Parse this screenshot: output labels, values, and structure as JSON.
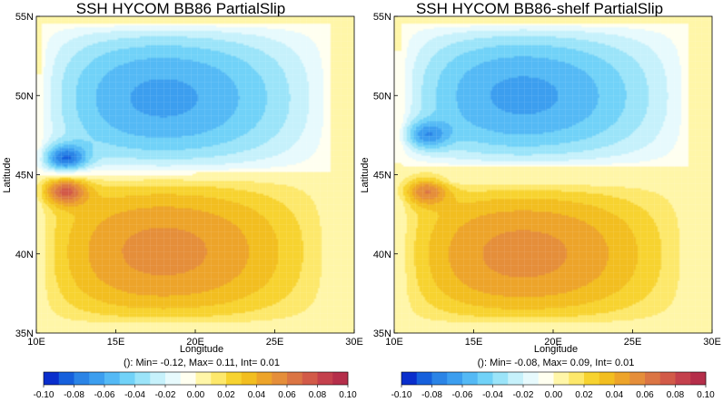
{
  "chart_data": [
    {
      "type": "heatmap",
      "title": "SSH HYCOM BB86 PartialSlip",
      "xlabel": "Longitude",
      "ylabel": "Latitude",
      "xlim": [
        10,
        30
      ],
      "ylim": [
        35,
        55
      ],
      "xticks": [
        {
          "v": 10,
          "label": "10E"
        },
        {
          "v": 15,
          "label": "15E"
        },
        {
          "v": 20,
          "label": "20E"
        },
        {
          "v": 25,
          "label": "25E"
        },
        {
          "v": 30,
          "label": "30E"
        }
      ],
      "yticks": [
        {
          "v": 35,
          "label": "35N"
        },
        {
          "v": 40,
          "label": "40N"
        },
        {
          "v": 45,
          "label": "45N"
        },
        {
          "v": 50,
          "label": "50N"
        },
        {
          "v": 55,
          "label": "55N"
        }
      ],
      "stats": "(): Min= -0.12, Max= 0.11, Int= 0.01",
      "min": -0.12,
      "max": 0.11,
      "interval": 0.01,
      "field": {
        "gyres": [
          {
            "lon": [
              10.3,
              28.5
            ],
            "lat": [
              45.2,
              54.5
            ],
            "amp": -0.07,
            "spread": 0.55
          },
          {
            "lon": [
              10.3,
              28.5
            ],
            "lat": [
              35.5,
              44.8
            ],
            "amp": 0.06,
            "spread": 0.55
          }
        ],
        "jet_dipole": {
          "lon": 11.8,
          "neg_lat": 46.0,
          "pos_lat": 44.0,
          "amp_neg": -0.12,
          "amp_pos": 0.11
        }
      },
      "grid": true
    },
    {
      "type": "heatmap",
      "title": "SSH HYCOM BB86-shelf PartialSlip",
      "xlabel": "Longitude",
      "ylabel": "Latitude",
      "xlim": [
        10,
        30
      ],
      "ylim": [
        35,
        55
      ],
      "xticks": [
        {
          "v": 10,
          "label": "10E"
        },
        {
          "v": 15,
          "label": "15E"
        },
        {
          "v": 20,
          "label": "20E"
        },
        {
          "v": 25,
          "label": "25E"
        },
        {
          "v": 30,
          "label": "30E"
        }
      ],
      "yticks": [
        {
          "v": 35,
          "label": "35N"
        },
        {
          "v": 40,
          "label": "40N"
        },
        {
          "v": 45,
          "label": "45N"
        },
        {
          "v": 50,
          "label": "50N"
        },
        {
          "v": 55,
          "label": "55N"
        }
      ],
      "stats": "(): Min= -0.08, Max= 0.09, Int= 0.01",
      "min": -0.08,
      "max": 0.09,
      "interval": 0.01,
      "field": {
        "gyres": [
          {
            "lon": [
              10.5,
              28.5
            ],
            "lat": [
              45.5,
              54.5
            ],
            "amp": -0.07,
            "spread": 0.55
          },
          {
            "lon": [
              10.5,
              28.5
            ],
            "lat": [
              35.5,
              44.5
            ],
            "amp": 0.06,
            "spread": 0.55
          }
        ],
        "jet_dipole": {
          "lon": 12.0,
          "neg_lat": 47.5,
          "pos_lat": 44.0,
          "amp_neg": -0.08,
          "amp_pos": 0.09
        }
      },
      "grid": true
    }
  ],
  "colorbar": {
    "levels": [
      -0.1,
      -0.08,
      -0.06,
      -0.04,
      -0.02,
      0.0,
      0.02,
      0.04,
      0.06,
      0.08,
      0.1
    ],
    "labels": [
      "-0.10",
      "-0.08",
      "-0.06",
      "-0.04",
      "-0.02",
      "0.00",
      "0.02",
      "0.04",
      "0.06",
      "0.08",
      "0.10"
    ],
    "colors": [
      "#0a2ecc",
      "#1660dc",
      "#2b84e6",
      "#3c9eef",
      "#54b9f5",
      "#71d2f8",
      "#9be4f9",
      "#c6f1fb",
      "#e7fafd",
      "#fffff0",
      "#fff6a8",
      "#fde86b",
      "#f7d330",
      "#f2be20",
      "#eda42a",
      "#e58e3a",
      "#db7544",
      "#d25a48",
      "#c4404c",
      "#b52e4a"
    ],
    "under": "#0a1aa8",
    "over": "#a01e3c"
  }
}
